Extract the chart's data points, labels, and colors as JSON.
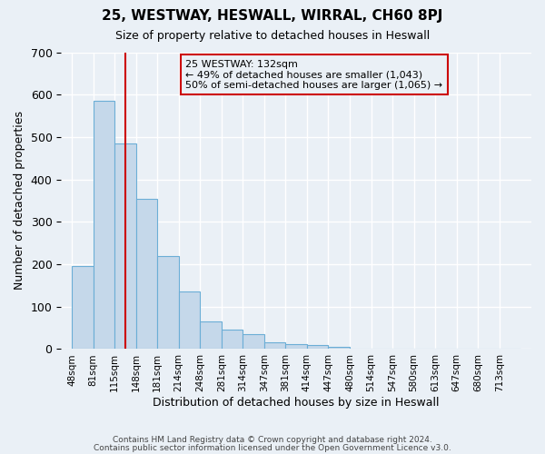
{
  "title": "25, WESTWAY, HESWALL, WIRRAL, CH60 8PJ",
  "subtitle": "Size of property relative to detached houses in Heswall",
  "xlabel": "Distribution of detached houses by size in Heswall",
  "ylabel": "Number of detached properties",
  "bin_labels": [
    "48sqm",
    "81sqm",
    "115sqm",
    "148sqm",
    "181sqm",
    "214sqm",
    "248sqm",
    "281sqm",
    "314sqm",
    "347sqm",
    "381sqm",
    "414sqm",
    "447sqm",
    "480sqm",
    "514sqm",
    "547sqm",
    "580sqm",
    "613sqm",
    "647sqm",
    "680sqm",
    "713sqm"
  ],
  "bar_heights": [
    195,
    585,
    485,
    355,
    220,
    135,
    65,
    45,
    35,
    17,
    12,
    10,
    5,
    0,
    0,
    0,
    0,
    0,
    0,
    0,
    0
  ],
  "bar_color": "#c5d8ea",
  "bar_edge_color": "#6baed6",
  "background_color": "#eaf0f6",
  "grid_color": "#ffffff",
  "vline_x_bar_index": 2,
  "vline_color": "#cc0000",
  "annotation_line1": "25 WESTWAY: 132sqm",
  "annotation_line2": "← 49% of detached houses are smaller (1,043)",
  "annotation_line3": "50% of semi-detached houses are larger (1,065) →",
  "annotation_box_color": "#cc0000",
  "ylim": [
    0,
    700
  ],
  "yticks": [
    0,
    100,
    200,
    300,
    400,
    500,
    600,
    700
  ],
  "footer_line1": "Contains HM Land Registry data © Crown copyright and database right 2024.",
  "footer_line2": "Contains public sector information licensed under the Open Government Licence v3.0."
}
